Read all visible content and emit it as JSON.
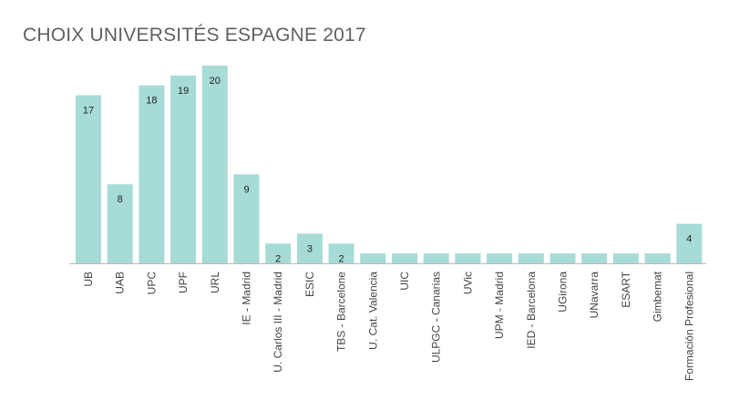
{
  "chart_data": {
    "type": "bar",
    "title": "CHOIX UNIVERSITÉS ESPAGNE 2017",
    "xlabel": "",
    "ylabel": "",
    "ylim": [
      0,
      20
    ],
    "grid": false,
    "legend": "none",
    "bar_color": "#a6dbd6",
    "axis_color": "#bbbbbb",
    "text_color": "#222222",
    "categories": [
      "UB",
      "UAB",
      "UPC",
      "UPF",
      "URL",
      "IE - Madrid",
      "U. Carlos III - Madrid",
      "ESIC",
      "TBS - Barcelone",
      "U. Cat. Valencia",
      "UIC",
      "ULPGC - Canarias",
      "UVic",
      "UPM - Madrid",
      "IED - Barcelona",
      "UGirona",
      "UNavarra",
      "ESART",
      "Gimbemat",
      "Formación Profesional"
    ],
    "values": [
      17,
      8,
      18,
      19,
      20,
      9,
      2,
      3,
      2,
      1,
      1,
      1,
      1,
      1,
      1,
      1,
      1,
      1,
      1,
      4
    ],
    "value_labels": [
      "17",
      "8",
      "18",
      "19",
      "20",
      "9",
      "2",
      "3",
      "2",
      "",
      "",
      "",
      "",
      "",
      "",
      "",
      "",
      "",
      "",
      "4"
    ]
  }
}
